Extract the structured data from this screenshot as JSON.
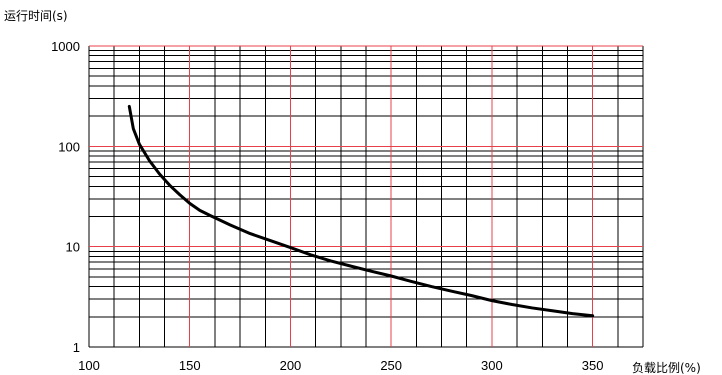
{
  "chart_data": {
    "type": "line",
    "title": "",
    "ylabel": "运行时间(s)",
    "xlabel": "负载比例(%)",
    "xlim": [
      100,
      375
    ],
    "ylim": [
      1,
      1000
    ],
    "yscale": "log",
    "grid": true,
    "xticks": [
      "100",
      "150",
      "200",
      "250",
      "300",
      "350"
    ],
    "xtick_values": [
      100,
      150,
      200,
      250,
      300,
      350
    ],
    "yticks": [
      "1",
      "10",
      "100",
      "1000"
    ],
    "ytick_values": [
      1,
      10,
      100,
      1000
    ],
    "colors": {
      "major_grid": "#e8404a",
      "minor_grid": "#000000",
      "curve": "#000000"
    },
    "series": [
      {
        "x": [
          120,
          122,
          125,
          130,
          135,
          140,
          145,
          150,
          155,
          160,
          170,
          180,
          190,
          200,
          210,
          220,
          230,
          240,
          250,
          260,
          270,
          280,
          290,
          300,
          310,
          320,
          330,
          340,
          350
        ],
        "y": [
          250,
          150,
          105,
          72,
          53,
          41,
          33,
          27,
          23,
          20.5,
          16.5,
          13.5,
          11.5,
          9.8,
          8.3,
          7.2,
          6.4,
          5.7,
          5.1,
          4.5,
          4.0,
          3.6,
          3.25,
          2.9,
          2.65,
          2.45,
          2.3,
          2.15,
          2.05
        ]
      }
    ]
  }
}
